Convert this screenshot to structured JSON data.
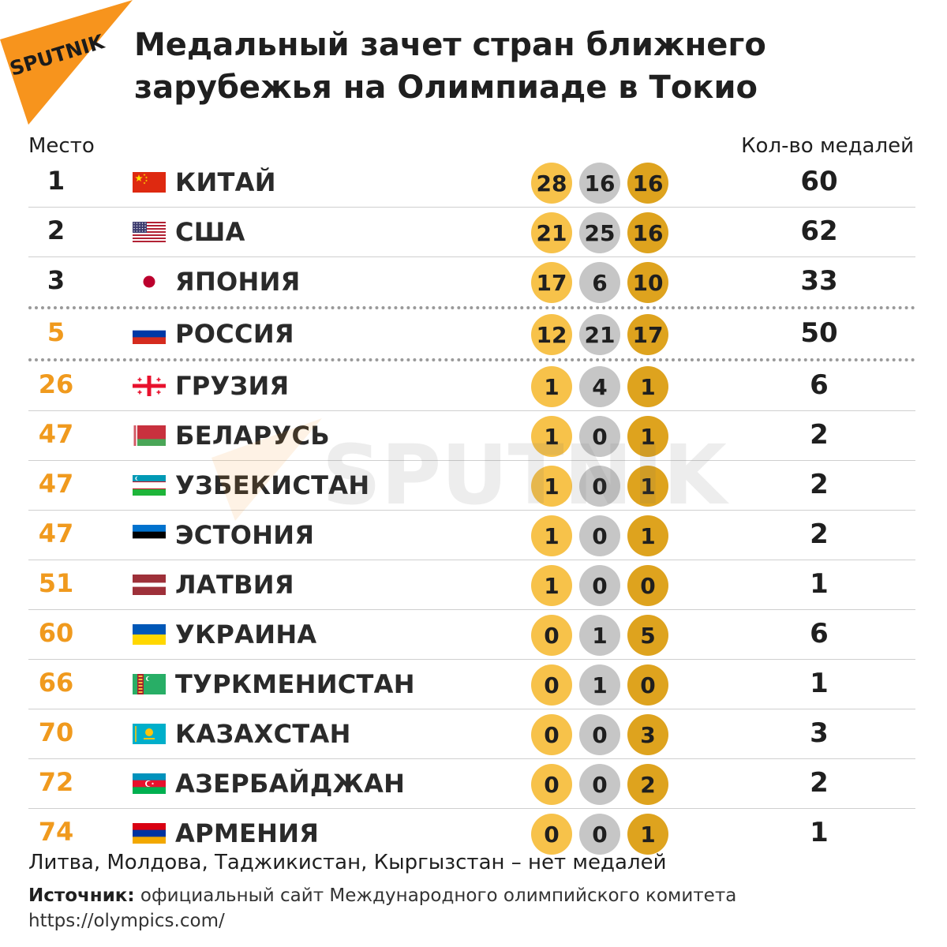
{
  "brand": {
    "logo_text": "SPUTNIK",
    "watermark_text": "SPUTNIK",
    "accent": "#f7941d"
  },
  "title": "Медальный зачет стран ближнего зарубежья на Олимпиаде в Токио",
  "headers": {
    "place": "Место",
    "total": "Кол-во медалей"
  },
  "medal_colors": {
    "gold": "#f7c24a",
    "silver": "#c6c6c6",
    "bronze": "#dea31e"
  },
  "rows": [
    {
      "place": "1",
      "flag": "cn",
      "country": "КИТАЙ",
      "gold": "28",
      "silver": "16",
      "bronze": "16",
      "total": "60"
    },
    {
      "place": "2",
      "flag": "us",
      "country": "США",
      "gold": "21",
      "silver": "25",
      "bronze": "16",
      "total": "62"
    },
    {
      "place": "3",
      "flag": "jp",
      "country": "ЯПОНИЯ",
      "gold": "17",
      "silver": "6",
      "bronze": "10",
      "total": "33"
    },
    {
      "place": "5",
      "flag": "ru",
      "country": "РОССИЯ",
      "gold": "12",
      "silver": "21",
      "bronze": "17",
      "total": "50"
    },
    {
      "place": "26",
      "flag": "ge",
      "country": "ГРУЗИЯ",
      "gold": "1",
      "silver": "4",
      "bronze": "1",
      "total": "6"
    },
    {
      "place": "47",
      "flag": "by",
      "country": "БЕЛАРУСЬ",
      "gold": "1",
      "silver": "0",
      "bronze": "1",
      "total": "2"
    },
    {
      "place": "47",
      "flag": "uz",
      "country": "УЗБЕКИСТАН",
      "gold": "1",
      "silver": "0",
      "bronze": "1",
      "total": "2"
    },
    {
      "place": "47",
      "flag": "ee",
      "country": "ЭСТОНИЯ",
      "gold": "1",
      "silver": "0",
      "bronze": "1",
      "total": "2"
    },
    {
      "place": "51",
      "flag": "lv",
      "country": "ЛАТВИЯ",
      "gold": "1",
      "silver": "0",
      "bronze": "0",
      "total": "1"
    },
    {
      "place": "60",
      "flag": "ua",
      "country": "УКРАИНА",
      "gold": "0",
      "silver": "1",
      "bronze": "5",
      "total": "6"
    },
    {
      "place": "66",
      "flag": "tm",
      "country": "ТУРКМЕНИСТАН",
      "gold": "0",
      "silver": "1",
      "bronze": "0",
      "total": "1"
    },
    {
      "place": "70",
      "flag": "kz",
      "country": "КАЗАХСТАН",
      "gold": "0",
      "silver": "0",
      "bronze": "3",
      "total": "3"
    },
    {
      "place": "72",
      "flag": "az",
      "country": "АЗЕРБАЙДЖАН",
      "gold": "0",
      "silver": "0",
      "bronze": "2",
      "total": "2"
    },
    {
      "place": "74",
      "flag": "am",
      "country": "АРМЕНИЯ",
      "gold": "0",
      "silver": "0",
      "bronze": "1",
      "total": "1"
    }
  ],
  "note": "Литва, Молдова, Таджикистан, Кыргызстан – нет медалей",
  "source": {
    "label": "Источник:",
    "text": " официальный сайт Международного олимпийского комитета",
    "url": "https://olympics.com/"
  }
}
